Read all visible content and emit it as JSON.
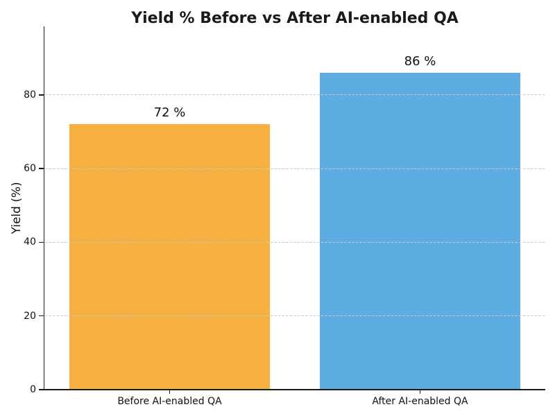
{
  "chart_data": {
    "type": "bar",
    "title": "Yield % Before vs After AI-enabled QA",
    "xlabel": "",
    "ylabel": "Yield (%)",
    "categories": [
      "Before AI-enabled QA",
      "After AI-enabled QA"
    ],
    "values": [
      72,
      86
    ],
    "bar_labels": [
      "72 %",
      "86 %"
    ],
    "bar_colors": [
      "#F5B041",
      "#5DADE2"
    ],
    "yticks": [
      0,
      20,
      40,
      60,
      80
    ],
    "ylim": [
      0,
      98.6
    ],
    "grid": "horizontal-dashed-over-bars",
    "legend": "none"
  },
  "colors": {
    "background": "#ffffff",
    "axis": "#1a1a1a",
    "text": "#111111",
    "gridline": "#c9c9c9"
  }
}
